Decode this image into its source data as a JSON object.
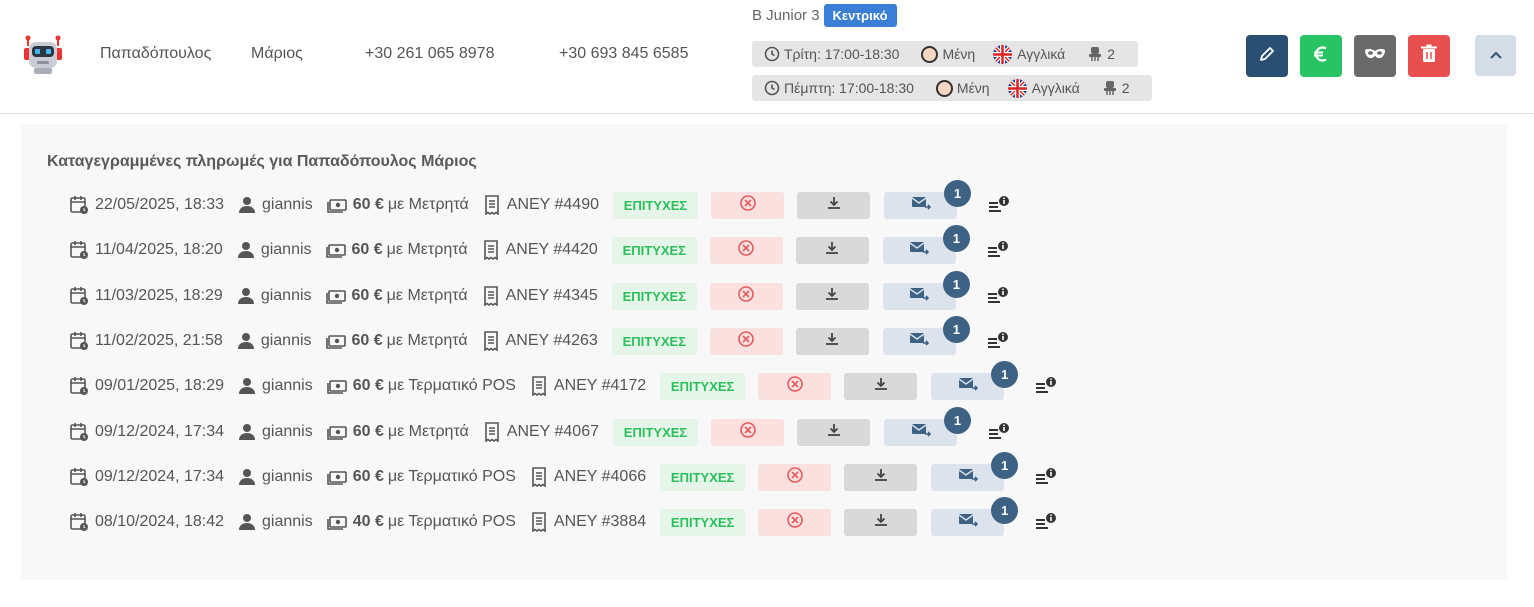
{
  "student": {
    "last_name": "Παπαδόπουλος",
    "first_name": "Μάριος",
    "phone_1": "+30 261 065 8978",
    "phone_2": "+30 693 845 6585",
    "avatar_icon": "robot-avatar-icon"
  },
  "course": {
    "name": "B Junior 3",
    "branch": "Κεντρικό",
    "schedule": [
      {
        "day_time": "Τρίτη: 17:00-18:30",
        "teacher": "Μένη",
        "language": "Αγγλικά",
        "seats": "2"
      },
      {
        "day_time": "Πέμπτη: 17:00-18:30",
        "teacher": "Μένη",
        "language": "Αγγλικά",
        "seats": "2"
      }
    ]
  },
  "actions": {
    "edit": "edit-pencil-icon",
    "payment": "euro-icon",
    "mask": "mask-icon",
    "delete": "trash-icon",
    "collapse": "chevron-up-icon"
  },
  "colors": {
    "primary": "#2b4f72",
    "success": "#28c464",
    "danger": "#e84f4f",
    "muted": "#6a6a6a",
    "badge": "#3a7fd5"
  },
  "payments": {
    "title": "Καταγεγραμμένες πληρωμές για Παπαδόπουλος Μάριος",
    "rows": [
      {
        "datetime": "22/05/2025, 18:33",
        "user": "giannis",
        "amount": "60 €",
        "method": "με Μετρητά",
        "receipt": "ΑΝΕΥ #4490",
        "status": "ΕΠΙΤΥΧΕΣ",
        "emails": "1"
      },
      {
        "datetime": "11/04/2025, 18:20",
        "user": "giannis",
        "amount": "60 €",
        "method": "με Μετρητά",
        "receipt": "ΑΝΕΥ #4420",
        "status": "ΕΠΙΤΥΧΕΣ",
        "emails": "1"
      },
      {
        "datetime": "11/03/2025, 18:29",
        "user": "giannis",
        "amount": "60 €",
        "method": "με Μετρητά",
        "receipt": "ΑΝΕΥ #4345",
        "status": "ΕΠΙΤΥΧΕΣ",
        "emails": "1"
      },
      {
        "datetime": "11/02/2025, 21:58",
        "user": "giannis",
        "amount": "60 €",
        "method": "με Μετρητά",
        "receipt": "ΑΝΕΥ #4263",
        "status": "ΕΠΙΤΥΧΕΣ",
        "emails": "1"
      },
      {
        "datetime": "09/01/2025, 18:29",
        "user": "giannis",
        "amount": "60 €",
        "method": "με Τερματικό POS",
        "receipt": "ΑΝΕΥ #4172",
        "status": "ΕΠΙΤΥΧΕΣ",
        "emails": "1"
      },
      {
        "datetime": "09/12/2024, 17:34",
        "user": "giannis",
        "amount": "60 €",
        "method": "με Μετρητά",
        "receipt": "ΑΝΕΥ #4067",
        "status": "ΕΠΙΤΥΧΕΣ",
        "emails": "1"
      },
      {
        "datetime": "09/12/2024, 17:34",
        "user": "giannis",
        "amount": "60 €",
        "method": "με Τερματικό POS",
        "receipt": "ΑΝΕΥ #4066",
        "status": "ΕΠΙΤΥΧΕΣ",
        "emails": "1"
      },
      {
        "datetime": "08/10/2024, 18:42",
        "user": "giannis",
        "amount": "40 €",
        "method": "με Τερματικό POS",
        "receipt": "ΑΝΕΥ #3884",
        "status": "ΕΠΙΤΥΧΕΣ",
        "emails": "1"
      }
    ]
  }
}
